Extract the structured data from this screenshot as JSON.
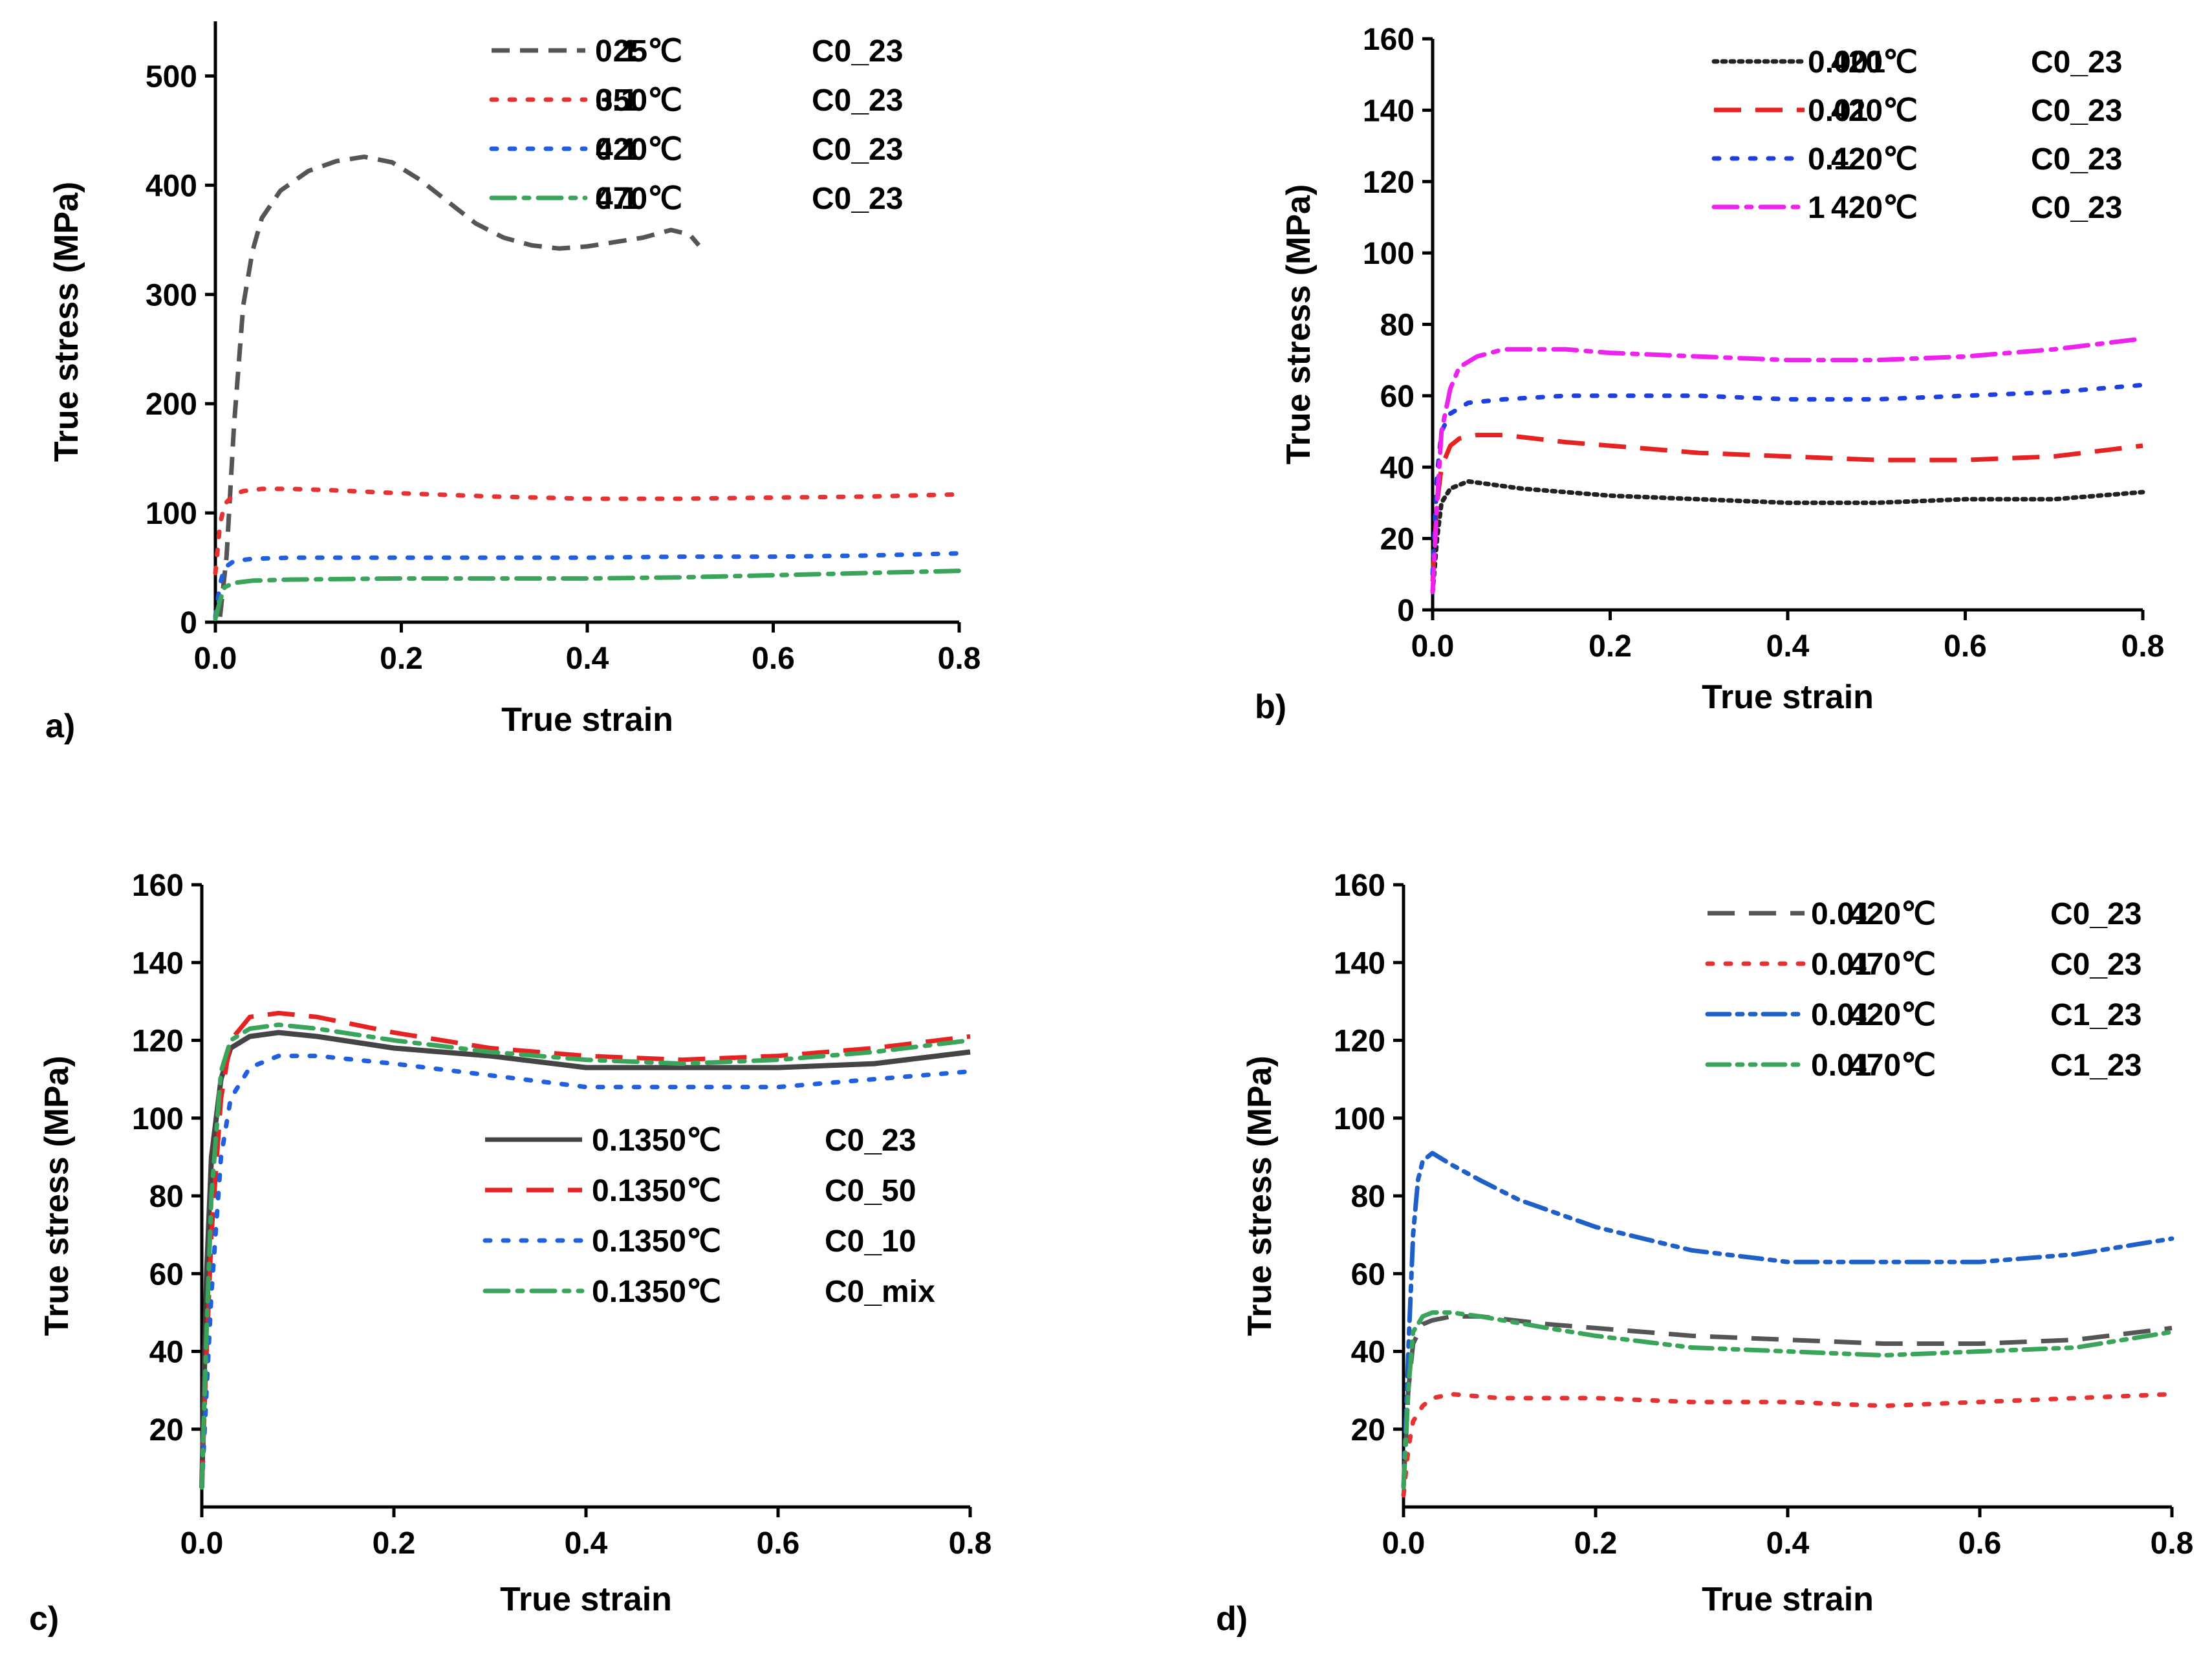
{
  "chart_data": [
    {
      "panel": "a)",
      "type": "line",
      "xlabel": "True strain",
      "ylabel": "True stress (MPa)",
      "xlim": [
        0,
        0.8
      ],
      "ylim": [
        0,
        550
      ],
      "xticks": [
        0.0,
        0.2,
        0.4,
        0.6,
        0.8
      ],
      "xtick_labels": [
        "0.0",
        "0.2",
        "0.4",
        "0.6",
        "0.8"
      ],
      "yticks": [
        0,
        100,
        200,
        300,
        400,
        500
      ],
      "ytick_labels": [
        "0",
        "100",
        "200",
        "300",
        "400",
        "500"
      ],
      "legend_position": "top-right",
      "series": [
        {
          "rate": "0.1",
          "temp": "25℃",
          "label": "C0_23",
          "color": "#555555",
          "style": "dash",
          "x": [
            0.005,
            0.012,
            0.02,
            0.03,
            0.04,
            0.05,
            0.07,
            0.1,
            0.13,
            0.16,
            0.19,
            0.22,
            0.25,
            0.28,
            0.31,
            0.34,
            0.37,
            0.4,
            0.43,
            0.46,
            0.49,
            0.51,
            0.52
          ],
          "y": [
            5,
            60,
            180,
            290,
            340,
            370,
            395,
            413,
            422,
            426,
            421,
            405,
            385,
            365,
            352,
            345,
            342,
            344,
            348,
            352,
            359,
            355,
            345
          ]
        },
        {
          "rate": "0.1",
          "temp": "350℃",
          "label": "C0_23",
          "color": "#e63232",
          "style": "dot",
          "x": [
            0.0,
            0.005,
            0.01,
            0.02,
            0.03,
            0.05,
            0.08,
            0.12,
            0.2,
            0.3,
            0.4,
            0.5,
            0.6,
            0.7,
            0.8
          ],
          "y": [
            45,
            90,
            108,
            117,
            120,
            122,
            122,
            121,
            118,
            115,
            113,
            113,
            114,
            115,
            117
          ]
        },
        {
          "rate": "0.1",
          "temp": "420℃",
          "label": "C0_23",
          "color": "#1f5fe0",
          "style": "dot",
          "x": [
            0.0,
            0.005,
            0.01,
            0.02,
            0.04,
            0.08,
            0.2,
            0.3,
            0.4,
            0.5,
            0.6,
            0.7,
            0.8
          ],
          "y": [
            5,
            35,
            50,
            56,
            58,
            59,
            59,
            59,
            59,
            60,
            60,
            61,
            63
          ]
        },
        {
          "rate": "0.1",
          "temp": "470℃",
          "label": "C0_23",
          "color": "#3aa55a",
          "style": "dashdot",
          "x": [
            0.0,
            0.005,
            0.01,
            0.02,
            0.04,
            0.08,
            0.2,
            0.3,
            0.4,
            0.5,
            0.6,
            0.7,
            0.8
          ],
          "y": [
            3,
            20,
            32,
            36,
            38,
            39,
            40,
            40,
            40,
            41,
            43,
            45,
            47
          ]
        }
      ]
    },
    {
      "panel": "b)",
      "type": "line",
      "xlabel": "True strain",
      "ylabel": "True stress (MPa)",
      "xlim": [
        0,
        0.8
      ],
      "ylim": [
        0,
        160
      ],
      "xticks": [
        0.0,
        0.2,
        0.4,
        0.6,
        0.8
      ],
      "xtick_labels": [
        "0.0",
        "0.2",
        "0.4",
        "0.6",
        "0.8"
      ],
      "yticks": [
        0,
        20,
        40,
        60,
        80,
        100,
        120,
        140,
        160
      ],
      "ytick_labels": [
        "0",
        "20",
        "40",
        "60",
        "80",
        "100",
        "120",
        "140",
        "160"
      ],
      "legend_position": "top-right",
      "series": [
        {
          "rate": "0.001",
          "temp": "420℃",
          "label": "C0_23",
          "color": "#222222",
          "style": "finedot",
          "x": [
            0.0,
            0.005,
            0.01,
            0.02,
            0.04,
            0.07,
            0.1,
            0.15,
            0.2,
            0.3,
            0.4,
            0.5,
            0.6,
            0.7,
            0.8
          ],
          "y": [
            5,
            20,
            30,
            34,
            36,
            35,
            34,
            33,
            32,
            31,
            30,
            30,
            31,
            31,
            33
          ]
        },
        {
          "rate": "0.01",
          "temp": "420℃",
          "label": "C0_23",
          "color": "#e62222",
          "style": "longdash",
          "x": [
            0.0,
            0.005,
            0.01,
            0.02,
            0.03,
            0.05,
            0.08,
            0.15,
            0.2,
            0.3,
            0.4,
            0.5,
            0.6,
            0.7,
            0.8
          ],
          "y": [
            8,
            30,
            40,
            46,
            48,
            49,
            49,
            47,
            46,
            44,
            43,
            42,
            42,
            43,
            46
          ]
        },
        {
          "rate": "0.1",
          "temp": "420℃",
          "label": "C0_23",
          "color": "#1f3fe0",
          "style": "dot",
          "x": [
            0.0,
            0.005,
            0.01,
            0.02,
            0.04,
            0.08,
            0.15,
            0.2,
            0.3,
            0.4,
            0.5,
            0.6,
            0.7,
            0.8
          ],
          "y": [
            10,
            38,
            50,
            55,
            58,
            59,
            60,
            60,
            60,
            59,
            59,
            60,
            61,
            63
          ]
        },
        {
          "rate": "1",
          "temp": "420℃",
          "label": "C0_23",
          "color": "#ee22ee",
          "style": "dashdot",
          "x": [
            0.0,
            0.005,
            0.01,
            0.02,
            0.03,
            0.05,
            0.08,
            0.1,
            0.15,
            0.2,
            0.3,
            0.4,
            0.5,
            0.6,
            0.7,
            0.8
          ],
          "y": [
            5,
            30,
            50,
            62,
            68,
            71,
            73,
            73,
            73,
            72,
            71,
            70,
            70,
            71,
            73,
            76
          ]
        }
      ]
    },
    {
      "panel": "c)",
      "type": "line",
      "xlabel": "True strain",
      "ylabel": "True stress (MPa)",
      "xlim": [
        0,
        0.8
      ],
      "ylim": [
        0,
        160
      ],
      "xticks": [
        0.0,
        0.2,
        0.4,
        0.6,
        0.8
      ],
      "xtick_labels": [
        "0.0",
        "0.2",
        "0.4",
        "0.6",
        "0.8"
      ],
      "yticks": [
        20,
        40,
        60,
        80,
        100,
        120,
        140,
        160
      ],
      "ytick_labels": [
        "20",
        "40",
        "60",
        "80",
        "100",
        "120",
        "140",
        "160"
      ],
      "legend_position": "center-right",
      "series": [
        {
          "rate": "0.1",
          "temp": "350℃",
          "label": "C0_23",
          "color": "#444444",
          "style": "solid",
          "x": [
            0.0,
            0.005,
            0.01,
            0.02,
            0.03,
            0.05,
            0.08,
            0.12,
            0.2,
            0.3,
            0.4,
            0.5,
            0.6,
            0.7,
            0.8
          ],
          "y": [
            5,
            60,
            90,
            110,
            118,
            121,
            122,
            121,
            118,
            116,
            113,
            113,
            113,
            114,
            117
          ]
        },
        {
          "rate": "0.1",
          "temp": "350℃",
          "label": "C0_50",
          "color": "#e62222",
          "style": "longdash",
          "x": [
            0.0,
            0.005,
            0.01,
            0.02,
            0.03,
            0.05,
            0.08,
            0.12,
            0.2,
            0.3,
            0.4,
            0.5,
            0.6,
            0.7,
            0.8
          ],
          "y": [
            5,
            40,
            70,
            105,
            120,
            126,
            127,
            126,
            122,
            118,
            116,
            115,
            116,
            118,
            121
          ]
        },
        {
          "rate": "0.1",
          "temp": "350℃",
          "label": "C0_10",
          "color": "#1f5fe0",
          "style": "dot",
          "x": [
            0.0,
            0.005,
            0.01,
            0.02,
            0.03,
            0.05,
            0.08,
            0.12,
            0.2,
            0.3,
            0.4,
            0.5,
            0.6,
            0.7,
            0.8
          ],
          "y": [
            5,
            30,
            55,
            90,
            105,
            113,
            116,
            116,
            114,
            111,
            108,
            108,
            108,
            110,
            112
          ]
        },
        {
          "rate": "0.1",
          "temp": "350℃",
          "label": "C0_mix",
          "color": "#3aa55a",
          "style": "dashdot",
          "x": [
            0.0,
            0.005,
            0.01,
            0.02,
            0.03,
            0.05,
            0.08,
            0.12,
            0.2,
            0.3,
            0.4,
            0.5,
            0.6,
            0.7,
            0.8
          ],
          "y": [
            5,
            45,
            80,
            112,
            120,
            123,
            124,
            123,
            120,
            117,
            115,
            114,
            115,
            117,
            120
          ]
        }
      ]
    },
    {
      "panel": "d)",
      "type": "line",
      "xlabel": "True strain",
      "ylabel": "True stress (MPa)",
      "xlim": [
        0,
        0.8
      ],
      "ylim": [
        0,
        160
      ],
      "xticks": [
        0.0,
        0.2,
        0.4,
        0.6,
        0.8
      ],
      "xtick_labels": [
        "0.0",
        "0.2",
        "0.4",
        "0.6",
        "0.8"
      ],
      "yticks": [
        20,
        40,
        60,
        80,
        100,
        120,
        140,
        160
      ],
      "ytick_labels": [
        "20",
        "40",
        "60",
        "80",
        "100",
        "120",
        "140",
        "160"
      ],
      "legend_position": "top-right",
      "series": [
        {
          "rate": "0.01",
          "temp": "420℃",
          "label": "C0_23",
          "color": "#555555",
          "style": "longdash",
          "x": [
            0.0,
            0.005,
            0.01,
            0.02,
            0.03,
            0.05,
            0.08,
            0.15,
            0.2,
            0.3,
            0.4,
            0.5,
            0.6,
            0.7,
            0.8
          ],
          "y": [
            5,
            30,
            42,
            47,
            48,
            49,
            49,
            47,
            46,
            44,
            43,
            42,
            42,
            43,
            46
          ]
        },
        {
          "rate": "0.01",
          "temp": "470℃",
          "label": "C0_23",
          "color": "#e63232",
          "style": "dot",
          "x": [
            0.0,
            0.005,
            0.01,
            0.02,
            0.03,
            0.05,
            0.1,
            0.2,
            0.3,
            0.4,
            0.5,
            0.6,
            0.7,
            0.8
          ],
          "y": [
            3,
            15,
            22,
            26,
            28,
            29,
            28,
            28,
            27,
            27,
            26,
            27,
            28,
            29
          ]
        },
        {
          "rate": "0.01",
          "temp": "420℃",
          "label": "C1_23",
          "color": "#1f5fc8",
          "style": "dashdotdot",
          "x": [
            0.0,
            0.005,
            0.01,
            0.015,
            0.02,
            0.03,
            0.05,
            0.08,
            0.12,
            0.2,
            0.3,
            0.4,
            0.5,
            0.6,
            0.7,
            0.8
          ],
          "y": [
            5,
            40,
            70,
            84,
            89,
            91,
            88,
            84,
            79,
            72,
            66,
            63,
            63,
            63,
            65,
            69
          ]
        },
        {
          "rate": "0.01",
          "temp": "470℃",
          "label": "C1_23",
          "color": "#3aa55a",
          "style": "dashdotdot",
          "x": [
            0.0,
            0.005,
            0.01,
            0.02,
            0.03,
            0.05,
            0.08,
            0.15,
            0.2,
            0.3,
            0.4,
            0.5,
            0.6,
            0.7,
            0.8
          ],
          "y": [
            5,
            30,
            45,
            49,
            50,
            50,
            49,
            46,
            44,
            41,
            40,
            39,
            40,
            41,
            45
          ]
        }
      ]
    }
  ]
}
